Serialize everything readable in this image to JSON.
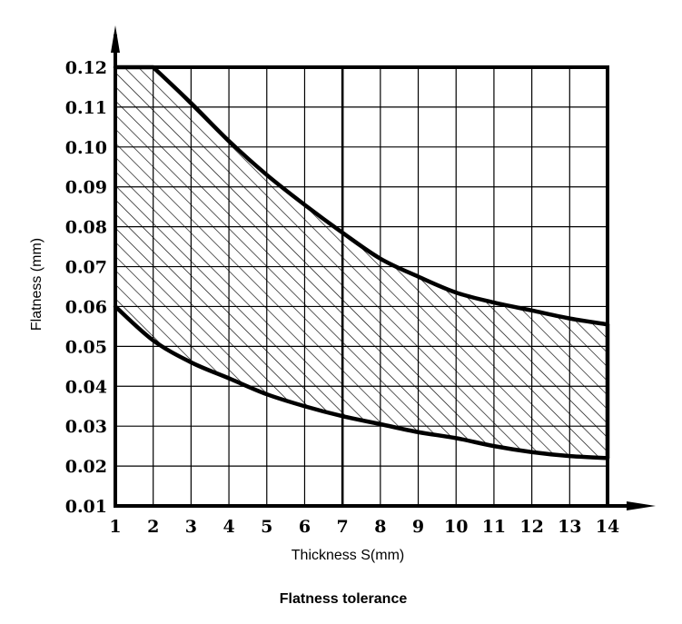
{
  "chart_data": {
    "type": "area",
    "title": "Flatness tolerance",
    "xlabel": "Thickness S(mm)",
    "ylabel": "Flatness (mm)",
    "xlim": [
      1,
      14
    ],
    "ylim": [
      0.01,
      0.12
    ],
    "grid": true,
    "fill_pattern": "diagonal-hatch",
    "x_ticks": [
      1,
      2,
      3,
      4,
      5,
      6,
      7,
      8,
      9,
      10,
      11,
      12,
      13,
      14
    ],
    "x_tick_labels": [
      "1",
      "2",
      "3",
      "4",
      "5",
      "6",
      "7",
      "8",
      "9",
      "10",
      "11",
      "12",
      "13",
      "14"
    ],
    "y_ticks": [
      0.01,
      0.02,
      0.03,
      0.04,
      0.05,
      0.06,
      0.07,
      0.08,
      0.09,
      0.1,
      0.11,
      0.12
    ],
    "y_tick_labels": [
      "0.01",
      "0.02",
      "0.03",
      "0.04",
      "0.05",
      "0.06",
      "0.07",
      "0.08",
      "0.09",
      "0.10",
      "0.11",
      "0.12"
    ],
    "highlight_x": 7,
    "series": [
      {
        "x": [
          1,
          2,
          3,
          4,
          5,
          6,
          7,
          8,
          9,
          10,
          11,
          12,
          13,
          14
        ],
        "values": [
          0.12,
          0.12,
          0.111,
          0.1015,
          0.093,
          0.0855,
          0.0785,
          0.072,
          0.0675,
          0.0635,
          0.061,
          0.059,
          0.057,
          0.0555
        ]
      },
      {
        "x": [
          1,
          2,
          3,
          4,
          5,
          6,
          7,
          8,
          9,
          10,
          11,
          12,
          13,
          14
        ],
        "values": [
          0.06,
          0.0515,
          0.046,
          0.042,
          0.038,
          0.035,
          0.0325,
          0.0305,
          0.0285,
          0.027,
          0.025,
          0.0235,
          0.0225,
          0.022
        ]
      }
    ]
  }
}
